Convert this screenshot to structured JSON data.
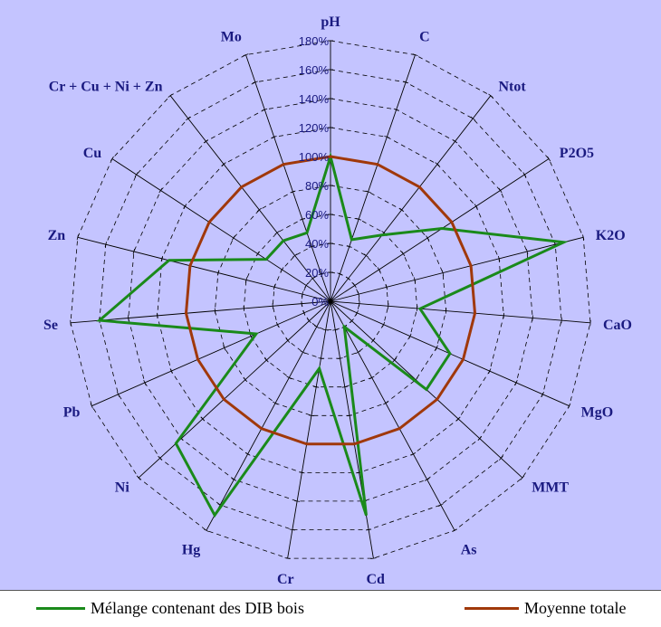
{
  "chart_data": {
    "type": "radar",
    "axes": [
      "pH",
      "C",
      "Ntot",
      "P2O5",
      "K2O",
      "CaO",
      "MgO",
      "MMT",
      "As",
      "Cd",
      "Cr",
      "Hg",
      "Ni",
      "Pb",
      "Se",
      "Zn",
      "Cu",
      "Cr + Cu + Ni + Zn",
      "Mo"
    ],
    "tick_labels": [
      "0%",
      "20%",
      "40%",
      "60%",
      "80%",
      "100%",
      "120%",
      "140%",
      "160%",
      "180%"
    ],
    "rmax": 180,
    "grid": true,
    "series": [
      {
        "name": "Mélange contenant des DIB bois",
        "color": "#1a8a1a",
        "values": [
          100,
          45,
          58,
          92,
          166,
          62,
          90,
          90,
          20,
          150,
          47,
          168,
          145,
          56,
          160,
          115,
          53,
          53,
          50
        ]
      },
      {
        "name": "Moyenne totale",
        "color": "#a0380a",
        "values": [
          100,
          100,
          100,
          100,
          100,
          100,
          100,
          100,
          100,
          100,
          100,
          100,
          100,
          100,
          100,
          100,
          100,
          100,
          100
        ]
      }
    ],
    "legend_position": "bottom"
  }
}
